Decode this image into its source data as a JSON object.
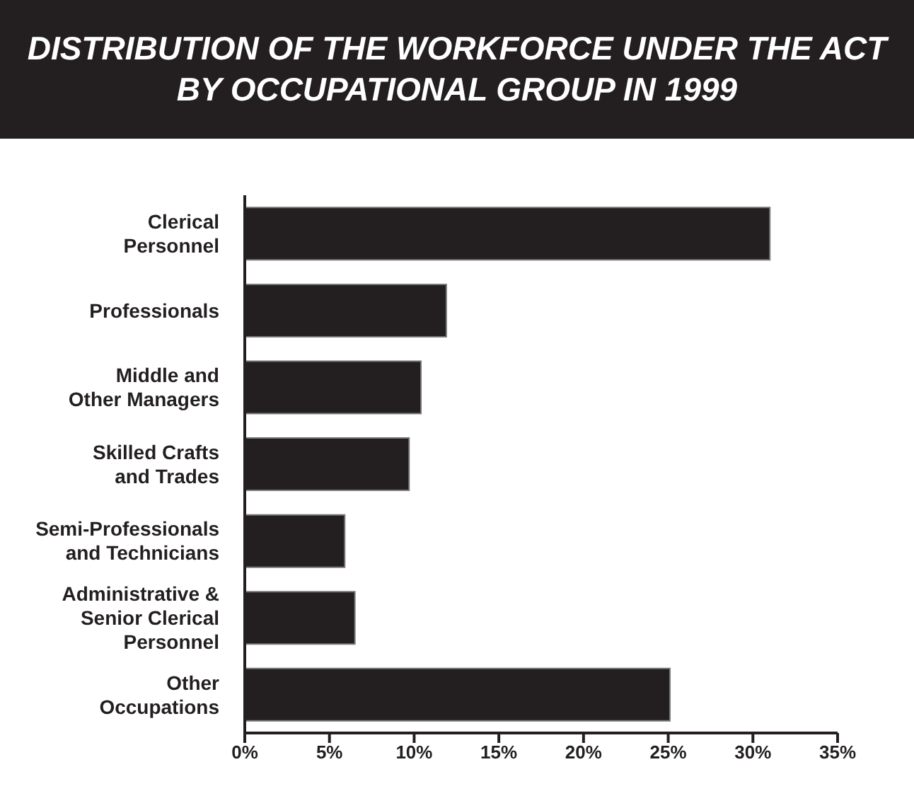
{
  "chart_data": {
    "type": "bar",
    "orientation": "horizontal",
    "title": "DISTRIBUTION OF THE WORKFORCE UNDER THE ACT\nBY OCCUPATIONAL GROUP IN 1999",
    "categories": [
      "Clerical\nPersonnel",
      "Professionals",
      "Middle and\nOther Managers",
      "Skilled Crafts\nand Trades",
      "Semi-Professionals\nand Technicians",
      "Administrative &\nSenior Clerical\nPersonnel",
      "Other\nOccupations"
    ],
    "values": [
      31.0,
      11.9,
      10.4,
      9.7,
      5.9,
      6.5,
      25.1
    ],
    "color": "#231f20",
    "xlim": [
      0,
      35
    ],
    "xticks": [
      {
        "value": 0,
        "label": "0%"
      },
      {
        "value": 5,
        "label": "5%"
      },
      {
        "value": 10,
        "label": "10%"
      },
      {
        "value": 15,
        "label": "15%"
      },
      {
        "value": 20,
        "label": "20%"
      },
      {
        "value": 25,
        "label": "25%"
      },
      {
        "value": 30,
        "label": "30%"
      },
      {
        "value": 35,
        "label": "35%"
      }
    ],
    "grid": false,
    "legend": false
  }
}
